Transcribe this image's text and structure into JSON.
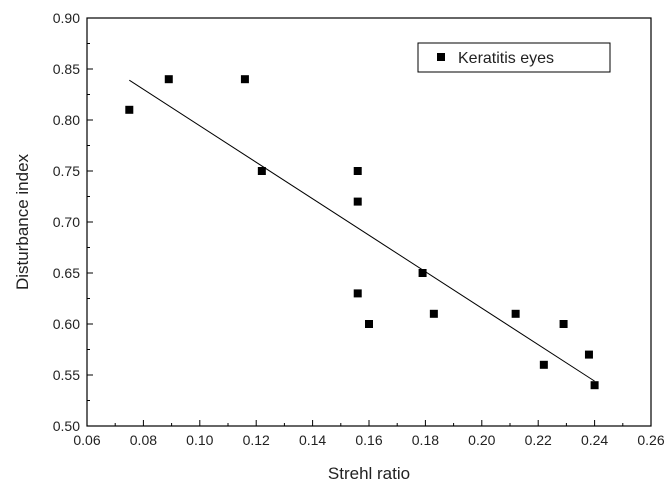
{
  "chart_data": {
    "type": "scatter",
    "xlabel": "Strehl ratio",
    "ylabel": "Disturbance index",
    "xlim": [
      0.06,
      0.26
    ],
    "ylim": [
      0.5,
      0.9
    ],
    "xticks": [
      "0.06",
      "0.08",
      "0.10",
      "0.12",
      "0.14",
      "0.16",
      "0.18",
      "0.20",
      "0.22",
      "0.24",
      "0.26"
    ],
    "yticks": [
      "0.50",
      "0.55",
      "0.60",
      "0.65",
      "0.70",
      "0.75",
      "0.80",
      "0.85",
      "0.90"
    ],
    "grid": false,
    "legend_position": "top-right",
    "series": [
      {
        "name": "Keratitis eyes",
        "marker": "square",
        "color": "#000000",
        "points": [
          {
            "x": 0.075,
            "y": 0.81
          },
          {
            "x": 0.089,
            "y": 0.84
          },
          {
            "x": 0.116,
            "y": 0.84
          },
          {
            "x": 0.122,
            "y": 0.75
          },
          {
            "x": 0.156,
            "y": 0.75
          },
          {
            "x": 0.156,
            "y": 0.72
          },
          {
            "x": 0.156,
            "y": 0.63
          },
          {
            "x": 0.16,
            "y": 0.6
          },
          {
            "x": 0.179,
            "y": 0.65
          },
          {
            "x": 0.183,
            "y": 0.61
          },
          {
            "x": 0.212,
            "y": 0.61
          },
          {
            "x": 0.222,
            "y": 0.56
          },
          {
            "x": 0.229,
            "y": 0.6
          },
          {
            "x": 0.238,
            "y": 0.57
          },
          {
            "x": 0.24,
            "y": 0.54
          }
        ]
      }
    ],
    "fit_line": {
      "color": "#000000",
      "points": [
        {
          "x": 0.075,
          "y": 0.839
        },
        {
          "x": 0.24,
          "y": 0.544
        }
      ]
    }
  }
}
